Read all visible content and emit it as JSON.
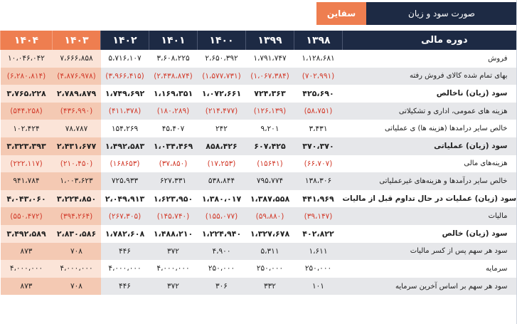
{
  "header": {
    "company_tab": "سقاین",
    "statement_tab": "صورت سود و زیان"
  },
  "columns": {
    "label": "دوره مالی",
    "years": [
      "۱۴۰۴",
      "۱۴۰۳",
      "۱۴۰۲",
      "۱۴۰۱",
      "۱۴۰۰",
      "۱۳۹۹",
      "۱۳۹۸"
    ],
    "future_count": 2
  },
  "rows": [
    {
      "label": "فروش",
      "bold": false,
      "neg": false,
      "values": [
        "۱۰،۰۴۶،۰۴۲",
        "۷،۶۶۶،۸۵۸",
        "۵،۷۱۶،۱۰۷",
        "۳،۶۰۸،۲۲۵",
        "۲،۶۵۰،۳۹۲",
        "۱،۷۹۱،۷۴۷",
        "۱،۱۲۸،۶۸۱"
      ]
    },
    {
      "label": "بهای تمام شده کالای فروش رفته",
      "bold": false,
      "neg": true,
      "values": [
        "(۶،۲۸۰،۸۱۴)",
        "(۴،۸۷۶،۹۷۸)",
        "(۳،۹۶۶،۴۱۵)",
        "(۲،۴۳۸،۸۷۴)",
        "(۱،۵۷۷،۷۳۱)",
        "(۱،۰۶۷،۳۸۴)",
        "(۷۰۲،۹۹۱)"
      ]
    },
    {
      "label": "سود (زیان) ناخالص",
      "bold": true,
      "neg": false,
      "values": [
        "۳،۷۶۵،۲۲۸",
        "۲،۷۸۹،۸۷۹",
        "۱،۷۴۹،۶۹۲",
        "۱،۱۶۹،۳۵۱",
        "۱،۰۷۲،۶۶۱",
        "۷۲۴،۳۶۳",
        "۴۲۵،۶۹۰"
      ]
    },
    {
      "label": "هزینه های عمومی، اداری و تشکیلاتی",
      "bold": false,
      "neg": true,
      "values": [
        "(۵۴۴،۲۵۸)",
        "(۴۳۶،۹۹۰)",
        "(۴۱۱،۳۷۸)",
        "(۱۸۰،۲۸۹)",
        "(۲۱۴،۴۷۷)",
        "(۱۲۶،۱۳۹)",
        "(۵۸،۷۵۱)"
      ]
    },
    {
      "label": "خالص سایر درامدها (هزینه ها) ی عملیاتی",
      "bold": false,
      "neg": false,
      "values": [
        "۱۰۲،۴۲۴",
        "۷۸،۷۸۷",
        "۱۵۴،۲۶۹",
        "۴۵،۴۰۷",
        "۲۴۲",
        "۹،۲۰۱",
        "۳،۴۳۱"
      ]
    },
    {
      "label": "سود (زیان) عملیاتی",
      "bold": true,
      "neg": false,
      "values": [
        "۳،۳۲۳،۳۹۳",
        "۲،۴۳۱،۶۷۷",
        "۱،۴۹۲،۵۸۳",
        "۱،۰۳۴،۴۶۹",
        "۸۵۸،۴۲۶",
        "۶۰۷،۴۲۵",
        "۳۷۰،۳۷۰"
      ]
    },
    {
      "label": "هزینه‌های مالی",
      "bold": false,
      "neg": true,
      "values": [
        "(۲۲۲،۱۱۷)",
        "(۲۱۰،۴۵۰)",
        "(۱۶۸۶۵۳)",
        "(۳۷،۸۵۰)",
        "(۱۷،۲۵۳)",
        "(۱۵۶۴۱)",
        "(۶۶،۷۰۷)"
      ]
    },
    {
      "label": "خالص سایر درآمدها و هزینه‌های غیرعملیاتی",
      "bold": false,
      "neg": false,
      "values": [
        "۹۴۱،۷۸۴",
        "۱،۰۰۳،۶۲۳",
        "۷۲۵،۹۳۳",
        "۶۲۷،۳۳۱",
        "۵۳۸،۸۴۴",
        "۷۹۵،۷۷۴",
        "۱۳۸،۳۰۶"
      ]
    },
    {
      "label": "سود (زیان) عملیات در حال تداوم قبل از مالیات",
      "bold": true,
      "neg": false,
      "values": [
        "۴،۰۴۳،۰۶۰",
        "۳،۲۲۴،۸۵۰",
        "۲،۰۴۹،۹۱۳",
        "۱،۶۲۳،۹۵۰",
        "۱،۳۸۰،۰۱۷",
        "۱،۳۸۷،۵۵۸",
        "۴۴۱،۹۶۹"
      ]
    },
    {
      "label": "مالیات",
      "bold": false,
      "neg": true,
      "values": [
        "(۵۵۰،۴۷۲)",
        "(۳۹۴،۲۶۴)",
        "(۲۶۷،۳۰۵)",
        "(۱۴۵،۷۴۰)",
        "(۱۵۵،۰۷۷)",
        "(۵۹،۸۸۰)",
        "(۳۹،۱۴۷)"
      ]
    },
    {
      "label": "سود (زیان) خالص",
      "bold": true,
      "neg": false,
      "values": [
        "۳،۴۹۲،۵۸۹",
        "۲،۸۳۰،۵۸۶",
        "۱،۷۸۲،۶۰۸",
        "۱،۴۸۸،۲۱۰",
        "۱،۲۲۴،۹۴۰",
        "۱،۳۲۷،۶۷۸",
        "۴۰۲،۸۲۲"
      ]
    },
    {
      "label": "سود هر سهم پس از کسر مالیات",
      "bold": false,
      "neg": false,
      "values": [
        "۸۷۳",
        "۷۰۸",
        "۴۴۶",
        "۳۷۲",
        "۴،۹۰۰",
        "۵،۳۱۱",
        "۱،۶۱۱"
      ]
    },
    {
      "label": "سرمایه",
      "bold": false,
      "neg": false,
      "values": [
        "۴،۰۰۰،۰۰۰",
        "۴،۰۰۰،۰۰۰",
        "۴،۰۰۰،۰۰۰",
        "۴،۰۰۰،۰۰۰",
        "۲۵۰،۰۰۰",
        "۲۵۰،۰۰۰",
        "۲۵۰،۰۰۰"
      ]
    },
    {
      "label": "سود هر سهم بر اساس آخرین سرمایه",
      "bold": false,
      "neg": false,
      "values": [
        "۸۷۳",
        "۷۰۸",
        "۴۴۶",
        "۳۷۲",
        "۳۰۶",
        "۳۳۲",
        "۱۰۱"
      ]
    }
  ],
  "colors": {
    "navy": "#1d2a44",
    "accent_orange": "#ee7e50",
    "negative_red": "#d23a2a"
  }
}
